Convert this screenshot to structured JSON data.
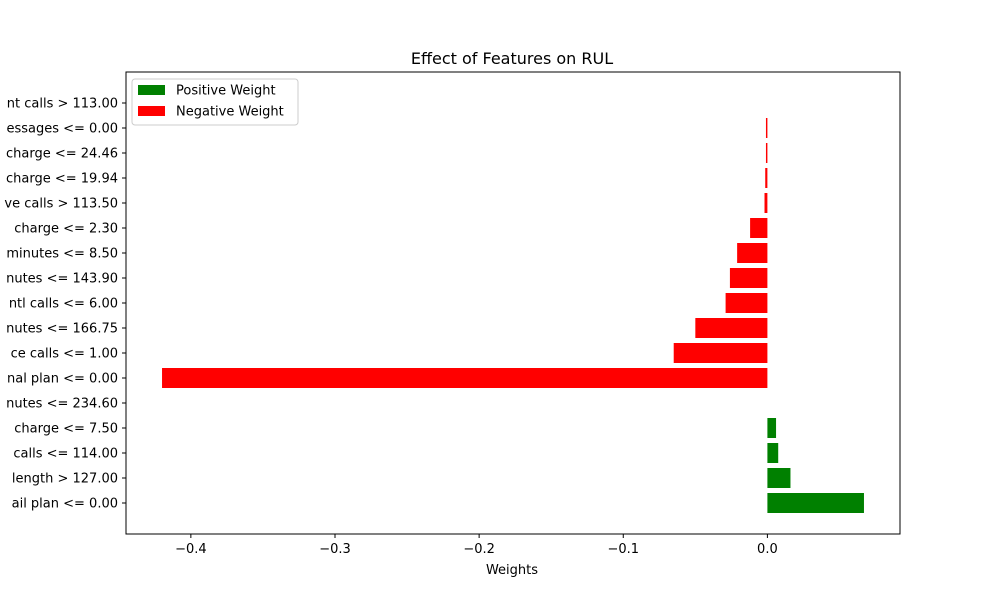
{
  "chart_data": {
    "type": "bar",
    "orientation": "horizontal",
    "title": "Effect of Features on RUL",
    "xlabel": "Weights",
    "ylabel": "",
    "xlim": [
      -0.445,
      0.092
    ],
    "xticks": [
      -0.4,
      -0.3,
      -0.2,
      -0.1,
      0.0
    ],
    "xtick_labels": [
      "−0.4",
      "−0.3",
      "−0.2",
      "−0.1",
      "0.0"
    ],
    "grid": false,
    "legend_position": "top-left",
    "legend": [
      {
        "label": "Positive Weight",
        "color": "#008000"
      },
      {
        "label": "Negative Weight",
        "color": "#ff0000"
      }
    ],
    "categories": [
      "nt calls > 113.00",
      "essages <= 0.00",
      "charge <= 24.46",
      "charge <= 19.94",
      "ve calls > 113.50",
      " charge <= 2.30",
      "minutes <= 8.50",
      "nutes <= 143.90",
      "ntl calls <= 6.00",
      "nutes <= 166.75",
      "ce calls <= 1.00",
      "nal plan <= 0.00",
      "nutes <= 234.60",
      " charge <= 7.50",
      " calls <= 114.00",
      " length > 127.00",
      "ail plan <= 0.00"
    ],
    "values": [
      0.0,
      -0.001,
      -0.001,
      -0.0015,
      -0.002,
      -0.012,
      -0.021,
      -0.026,
      -0.029,
      -0.05,
      -0.065,
      -0.42,
      0.0,
      0.006,
      0.0075,
      0.016,
      0.067
    ]
  }
}
